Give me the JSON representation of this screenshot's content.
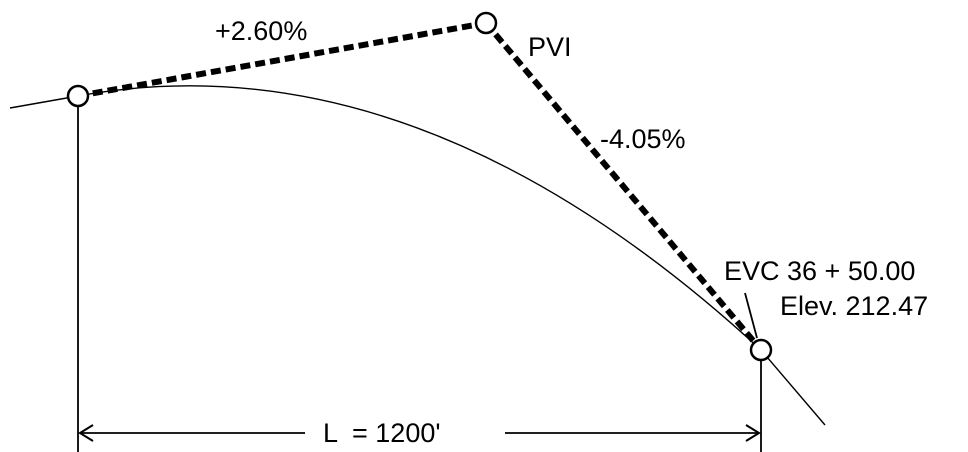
{
  "labels": {
    "grade_in": "+2.60%",
    "grade_out": "-4.05%",
    "pvi": "PVI",
    "evc_station": "EVC 36 + 50.00",
    "evc_elevation": "Elev. 212.47",
    "length": "L  = 1200'"
  },
  "colors": {
    "stroke": "#000000",
    "background": "#ffffff"
  }
}
